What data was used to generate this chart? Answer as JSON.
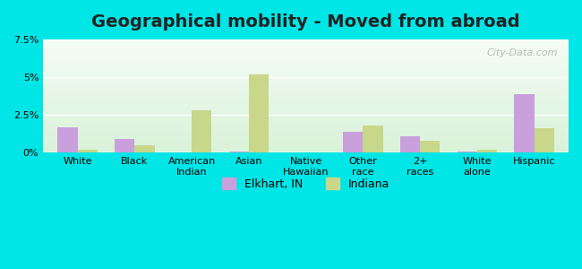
{
  "title": "Geographical mobility - Moved from abroad",
  "categories": [
    "White",
    "Black",
    "American\nIndian",
    "Asian",
    "Native\nHawaiian",
    "Other\nrace",
    "2+\nraces",
    "White\nalone",
    "Hispanic"
  ],
  "elkhart_values": [
    1.7,
    0.9,
    0.0,
    0.05,
    0.02,
    1.4,
    1.1,
    0.05,
    3.9
  ],
  "indiana_values": [
    0.2,
    0.5,
    2.8,
    5.2,
    0.02,
    1.8,
    0.8,
    0.2,
    1.6
  ],
  "elkhart_color": "#c9a0dc",
  "indiana_color": "#c8d78a",
  "background_color_outer": "#00e5e5",
  "background_color_inner_top": "#e8f5e8",
  "background_color_inner_bottom": "#f0faf0",
  "ylim": [
    0,
    7.5
  ],
  "yticks": [
    0,
    2.5,
    5.0,
    7.5
  ],
  "ytick_labels": [
    "0%",
    "2.5%",
    "5%",
    "7.5%"
  ],
  "legend_elkhart": "Elkhart, IN",
  "legend_indiana": "Indiana",
  "watermark": "City-Data.com",
  "bar_width": 0.35,
  "title_fontsize": 14,
  "tick_fontsize": 8,
  "legend_fontsize": 9
}
